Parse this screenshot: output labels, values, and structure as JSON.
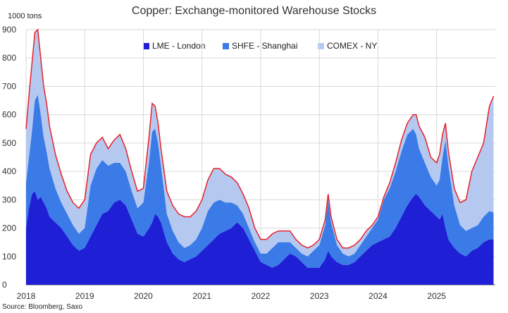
{
  "chart_data": {
    "type": "area",
    "title": "Copper: Exchange-monitored Warehouse Stocks",
    "unit_label": "1000 tons",
    "source": "Source: Bloomberg, Saxo",
    "ylim": [
      0,
      900
    ],
    "y_ticks": [
      "0",
      "100",
      "200",
      "300",
      "400",
      "500",
      "600",
      "700",
      "800",
      "900"
    ],
    "x_range": [
      2018.0,
      2026.0
    ],
    "x_ticks": [
      "2018",
      "2019",
      "2020",
      "2021",
      "2022",
      "2023",
      "2024",
      "2025"
    ],
    "grid": true,
    "legend_position": "top",
    "stacked": true,
    "x": [
      2018.0,
      2018.05,
      2018.1,
      2018.15,
      2018.2,
      2018.25,
      2018.3,
      2018.35,
      2018.4,
      2018.5,
      2018.6,
      2018.7,
      2018.8,
      2018.9,
      2019.0,
      2019.1,
      2019.2,
      2019.3,
      2019.4,
      2019.5,
      2019.6,
      2019.7,
      2019.8,
      2019.9,
      2020.0,
      2020.1,
      2020.15,
      2020.2,
      2020.25,
      2020.3,
      2020.4,
      2020.5,
      2020.6,
      2020.7,
      2020.8,
      2020.9,
      2021.0,
      2021.1,
      2021.2,
      2021.3,
      2021.4,
      2021.5,
      2021.6,
      2021.7,
      2021.8,
      2021.9,
      2022.0,
      2022.1,
      2022.2,
      2022.3,
      2022.4,
      2022.5,
      2022.6,
      2022.7,
      2022.8,
      2022.9,
      2023.0,
      2023.1,
      2023.15,
      2023.2,
      2023.3,
      2023.4,
      2023.5,
      2023.6,
      2023.7,
      2023.8,
      2023.9,
      2024.0,
      2024.1,
      2024.2,
      2024.3,
      2024.4,
      2024.5,
      2024.6,
      2024.65,
      2024.7,
      2024.8,
      2024.9,
      2025.0,
      2025.05,
      2025.1,
      2025.15,
      2025.2,
      2025.3,
      2025.4,
      2025.5,
      2025.6,
      2025.7,
      2025.8,
      2025.9,
      2025.97
    ],
    "series": [
      {
        "name": "LME - London",
        "color": "#1f1fd6",
        "values": [
          200,
          270,
          320,
          330,
          300,
          310,
          290,
          270,
          240,
          220,
          200,
          170,
          140,
          120,
          130,
          170,
          210,
          250,
          260,
          290,
          300,
          280,
          230,
          180,
          170,
          200,
          220,
          250,
          240,
          220,
          150,
          110,
          90,
          80,
          90,
          100,
          120,
          140,
          160,
          180,
          190,
          200,
          220,
          200,
          160,
          120,
          80,
          70,
          60,
          70,
          90,
          110,
          100,
          80,
          60,
          60,
          60,
          90,
          120,
          100,
          80,
          70,
          70,
          80,
          100,
          120,
          140,
          150,
          160,
          170,
          200,
          240,
          280,
          310,
          320,
          310,
          280,
          260,
          240,
          230,
          250,
          200,
          160,
          130,
          110,
          100,
          120,
          130,
          150,
          160,
          160
        ]
      },
      {
        "name": "SHFE - Shanghai",
        "color": "#3a7be8",
        "values": [
          160,
          180,
          220,
          320,
          370,
          290,
          230,
          200,
          170,
          120,
          90,
          80,
          70,
          60,
          70,
          180,
          200,
          190,
          160,
          140,
          130,
          120,
          100,
          90,
          120,
          240,
          320,
          300,
          260,
          200,
          100,
          80,
          60,
          50,
          50,
          60,
          80,
          120,
          130,
          120,
          100,
          90,
          60,
          50,
          40,
          30,
          30,
          40,
          70,
          80,
          60,
          40,
          30,
          30,
          40,
          60,
          80,
          120,
          180,
          120,
          60,
          40,
          30,
          30,
          40,
          50,
          60,
          80,
          140,
          170,
          200,
          230,
          250,
          240,
          210,
          170,
          150,
          120,
          110,
          140,
          200,
          310,
          260,
          150,
          100,
          90,
          80,
          80,
          90,
          100,
          95
        ]
      },
      {
        "name": "COMEX - NY",
        "color": "#b5c9f0",
        "values": [
          190,
          220,
          240,
          240,
          230,
          200,
          180,
          170,
          150,
          120,
          100,
          80,
          80,
          90,
          100,
          110,
          90,
          80,
          60,
          80,
          100,
          80,
          70,
          60,
          50,
          90,
          100,
          80,
          70,
          60,
          80,
          90,
          100,
          110,
          100,
          100,
          100,
          110,
          120,
          110,
          100,
          90,
          80,
          70,
          70,
          50,
          50,
          50,
          50,
          40,
          40,
          40,
          30,
          30,
          30,
          20,
          20,
          20,
          20,
          20,
          20,
          20,
          30,
          30,
          20,
          20,
          10,
          10,
          10,
          20,
          30,
          40,
          40,
          50,
          70,
          80,
          90,
          70,
          80,
          90,
          80,
          60,
          50,
          60,
          80,
          110,
          200,
          240,
          260,
          370,
          410
        ]
      }
    ]
  }
}
